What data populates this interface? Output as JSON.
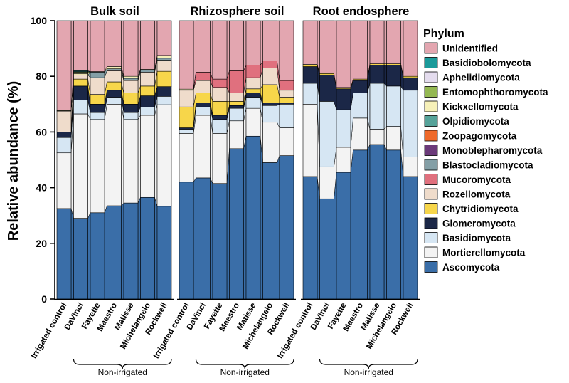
{
  "chart_data": {
    "type": "stacked-bar",
    "ylabel": "Relative abundance (%)",
    "ylim": [
      0,
      100
    ],
    "yticks": [
      "0",
      "20",
      "40",
      "60",
      "80",
      "100"
    ],
    "legend_title": "Phylum",
    "legend_position": "right",
    "categories": [
      "Irrigated control",
      "DaVinci",
      "Fayette",
      "Maestro",
      "Matisse",
      "Michelangelo",
      "Rockwell"
    ],
    "group_label": "Non-irrigated",
    "series": [
      {
        "name": "Ascomycota",
        "color": "#3a6ea8"
      },
      {
        "name": "Mortierellomycota",
        "color": "#f3f3f3"
      },
      {
        "name": "Basidiomycota",
        "color": "#d6e6f3"
      },
      {
        "name": "Glomeromycota",
        "color": "#1b2747"
      },
      {
        "name": "Chytridiomycota",
        "color": "#f7d64a"
      },
      {
        "name": "Rozellomycota",
        "color": "#efdccb"
      },
      {
        "name": "Mucoromycota",
        "color": "#e0707e"
      },
      {
        "name": "Blastocladiomycota",
        "color": "#849fa6"
      },
      {
        "name": "Monoblepharomycota",
        "color": "#6b3a7a"
      },
      {
        "name": "Zoopagomycota",
        "color": "#ef6a2b"
      },
      {
        "name": "Olpidiomycota",
        "color": "#56a39a"
      },
      {
        "name": "Kickxellomycota",
        "color": "#f6f0b8"
      },
      {
        "name": "Entomophthoromycota",
        "color": "#94b852"
      },
      {
        "name": "Aphelidiomycota",
        "color": "#e4dcee"
      },
      {
        "name": "Basidiobolomycota",
        "color": "#1b9a9a"
      },
      {
        "name": "Unidentified",
        "color": "#e3a6b0"
      }
    ],
    "panels": [
      {
        "title": "Bulk soil",
        "bars": [
          [
            32.5,
            20.0,
            5.5,
            2.0,
            0,
            7.5,
            0,
            0,
            0,
            0,
            0,
            0.2,
            0,
            0,
            0,
            32.3
          ],
          [
            29.0,
            37.5,
            5.0,
            5.0,
            2.5,
            1.5,
            0,
            0,
            0,
            0,
            0,
            0.5,
            0.5,
            0.2,
            0.3,
            18.0
          ],
          [
            31.0,
            33.5,
            2.5,
            3.0,
            3.5,
            6.0,
            0,
            2.0,
            0,
            0,
            0,
            0.2,
            0,
            0,
            0,
            18.3
          ],
          [
            33.5,
            36.5,
            2.5,
            2.5,
            3.0,
            4.0,
            0,
            0.7,
            0,
            0,
            0,
            0.8,
            0,
            0,
            0,
            16.5
          ],
          [
            34.5,
            30.0,
            2.5,
            3.0,
            4.0,
            4.5,
            0,
            0.8,
            0,
            0,
            0,
            0.7,
            0,
            0,
            0,
            20.0
          ],
          [
            36.5,
            29.5,
            3.0,
            4.0,
            3.5,
            5.0,
            0,
            0.8,
            0,
            0,
            0,
            0.2,
            0,
            0,
            0,
            17.5
          ],
          [
            33.3,
            36.5,
            3.0,
            3.5,
            5.5,
            4.0,
            0,
            0.7,
            0,
            0,
            0,
            1.0,
            0,
            0,
            0,
            12.5
          ]
        ]
      },
      {
        "title": "Rhizosphere soil",
        "bars": [
          [
            42.0,
            17.5,
            1.5,
            0.5,
            7.5,
            6.0,
            0,
            0,
            0,
            0,
            0,
            0.4,
            0,
            0,
            0,
            24.6
          ],
          [
            43.5,
            22.5,
            3.0,
            1.5,
            3.5,
            4.5,
            3.0,
            0,
            0,
            0,
            0,
            0,
            0,
            0,
            0,
            18.5
          ],
          [
            41.5,
            18.0,
            5.0,
            1.5,
            5.0,
            5.0,
            3.0,
            0,
            0,
            0,
            0,
            0,
            0,
            0,
            0,
            21.0
          ],
          [
            54.0,
            10.0,
            4.5,
            1.0,
            1.5,
            3.0,
            8.0,
            0,
            0,
            0,
            0,
            0,
            0,
            0,
            0,
            18.0
          ],
          [
            58.5,
            10.0,
            4.0,
            1.5,
            1.5,
            4.0,
            4.5,
            0,
            0,
            0,
            0,
            0,
            0,
            0,
            0,
            16.0
          ],
          [
            49.0,
            14.5,
            6.0,
            1.0,
            6.5,
            6.0,
            2.5,
            0,
            0,
            0,
            0,
            0,
            0,
            0,
            0,
            14.5
          ],
          [
            51.5,
            10.0,
            8.5,
            0.5,
            2.0,
            2.5,
            3.5,
            0,
            0,
            0,
            0,
            0,
            0,
            0,
            0,
            21.5
          ]
        ]
      },
      {
        "title": "Root endosphere",
        "bars": [
          [
            44.0,
            26.0,
            7.5,
            6.0,
            0.5,
            0.3,
            0,
            0,
            0,
            0,
            0,
            0,
            0,
            0,
            0,
            15.7
          ],
          [
            36.0,
            11.5,
            23.5,
            9.5,
            0.5,
            0,
            0,
            0,
            0,
            0,
            0,
            0,
            0,
            0,
            0,
            19.0
          ],
          [
            45.5,
            9.0,
            13.5,
            7.5,
            0.5,
            0,
            0,
            0,
            0,
            0,
            0,
            0,
            0,
            0,
            0,
            24.0
          ],
          [
            53.5,
            11.5,
            9.0,
            4.5,
            0.5,
            0,
            0,
            0,
            0,
            0,
            0,
            0,
            0,
            0,
            0,
            21.0
          ],
          [
            55.5,
            5.5,
            16.5,
            6.5,
            0.5,
            0,
            0,
            0,
            0,
            0,
            0,
            0,
            0,
            0,
            0,
            15.5
          ],
          [
            53.5,
            8.5,
            14.5,
            7.5,
            0.5,
            0,
            0,
            0,
            0,
            0,
            0,
            0,
            0,
            0,
            0,
            15.5
          ],
          [
            44.0,
            7.0,
            24.0,
            4.5,
            0.5,
            0,
            0,
            0,
            0,
            0,
            0,
            0,
            0,
            0,
            0,
            20.0
          ]
        ]
      }
    ]
  }
}
